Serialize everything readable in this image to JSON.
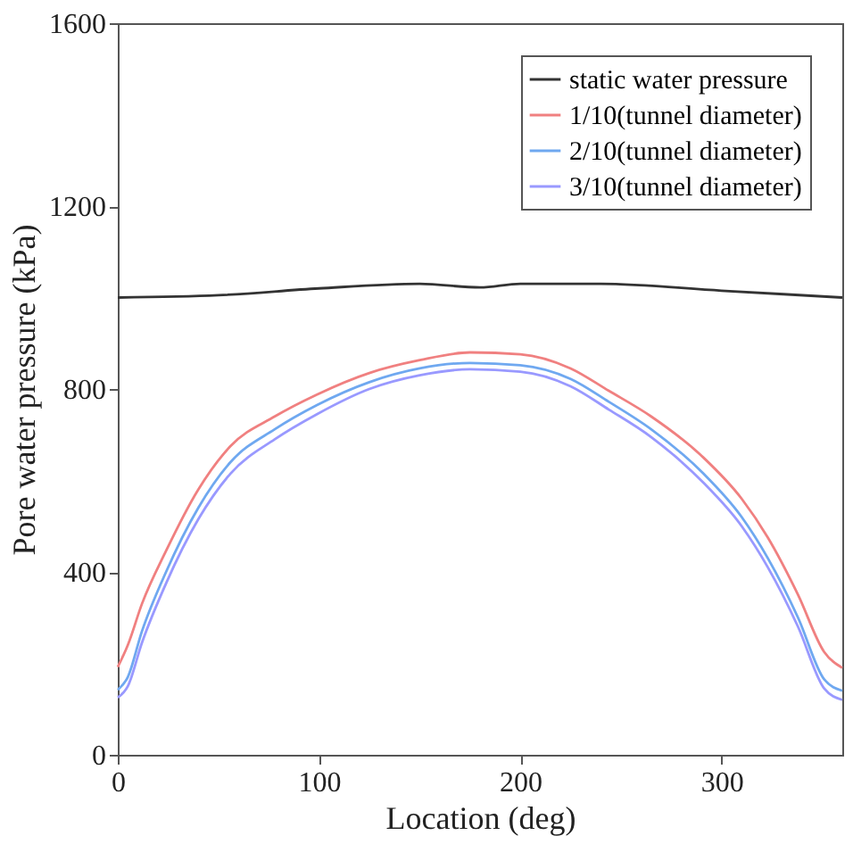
{
  "chart_data": {
    "type": "line",
    "xlabel": "Location (deg)",
    "ylabel": "Pore water pressure (kPa)",
    "xlim": [
      0,
      360
    ],
    "xticks": [
      0,
      100,
      200,
      300
    ],
    "ylim": [
      0,
      1600
    ],
    "yticks": [
      0,
      400,
      800,
      1200,
      1600
    ],
    "grid": false,
    "legend": "top right",
    "marker": "none",
    "line_style": "solid",
    "series": [
      {
        "name": "static water pressure",
        "color": "#333333",
        "x": [
          0,
          50,
          100,
          150,
          180,
          200,
          240,
          300,
          360
        ],
        "values": [
          1000,
          1005,
          1020,
          1030,
          1022,
          1030,
          1030,
          1015,
          1000
        ]
      },
      {
        "name": "1/10(tunnel diameter)",
        "color": "#f08080",
        "x": [
          0,
          5,
          12,
          24,
          40,
          56,
          78,
          99,
          125,
          150,
          175,
          200,
          225,
          244,
          265,
          291,
          310,
          323,
          338,
          351,
          360
        ],
        "values": [
          192,
          240,
          330,
          446,
          580,
          675,
          740,
          788,
          835,
          863,
          880,
          876,
          845,
          796,
          740,
          650,
          560,
          475,
          350,
          225,
          190
        ]
      },
      {
        "name": "2/10(tunnel diameter)",
        "color": "#6fa8f0",
        "x": [
          0,
          5,
          12,
          24,
          40,
          56,
          78,
          99,
          125,
          150,
          175,
          200,
          225,
          244,
          265,
          291,
          310,
          323,
          338,
          351,
          360
        ],
        "values": [
          142,
          170,
          270,
          400,
          540,
          640,
          712,
          765,
          815,
          845,
          857,
          852,
          822,
          772,
          712,
          615,
          520,
          430,
          300,
          165,
          140
        ]
      },
      {
        "name": "3/10(tunnel diameter)",
        "color": "#9999ff",
        "x": [
          0,
          5,
          12,
          24,
          40,
          56,
          78,
          99,
          125,
          150,
          175,
          200,
          225,
          244,
          265,
          291,
          310,
          323,
          338,
          351,
          360
        ],
        "values": [
          125,
          150,
          245,
          375,
          515,
          615,
          690,
          745,
          800,
          830,
          843,
          838,
          806,
          755,
          695,
          595,
          500,
          410,
          280,
          145,
          120
        ]
      }
    ]
  }
}
